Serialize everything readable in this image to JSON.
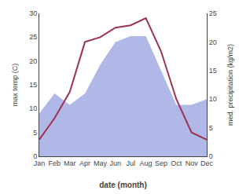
{
  "chart_data": {
    "type": "line",
    "categories": [
      "Jan",
      "Feb",
      "Mar",
      "Apr",
      "May",
      "Jun",
      "Jul",
      "Aug",
      "Sep",
      "Oct",
      "Nov",
      "Dec"
    ],
    "series": [
      {
        "type": "area",
        "color": "#b0b8e8",
        "axis": "y2",
        "values": [
          7.5,
          11.0,
          9.0,
          11.0,
          16.0,
          20.0,
          21.0,
          21.0,
          15.0,
          9.0,
          9.0,
          10.0
        ]
      },
      {
        "type": "line",
        "color": "#a03050",
        "values": [
          3.5,
          8.0,
          13.5,
          24.0,
          25.0,
          27.0,
          27.5,
          29.0,
          22.0,
          12.0,
          5.0,
          3.5
        ]
      }
    ],
    "xlabel": "date (month)",
    "ylabel": "max temp (C)",
    "y2label": "med. precipitation (kg/m2)",
    "ylim": [
      0,
      30
    ],
    "yticks": [
      0,
      5,
      10,
      15,
      20,
      25,
      30
    ],
    "y2lim": [
      0,
      25
    ],
    "y2ticks": [
      0,
      5,
      10,
      15,
      20,
      25
    ],
    "grid": false
  }
}
